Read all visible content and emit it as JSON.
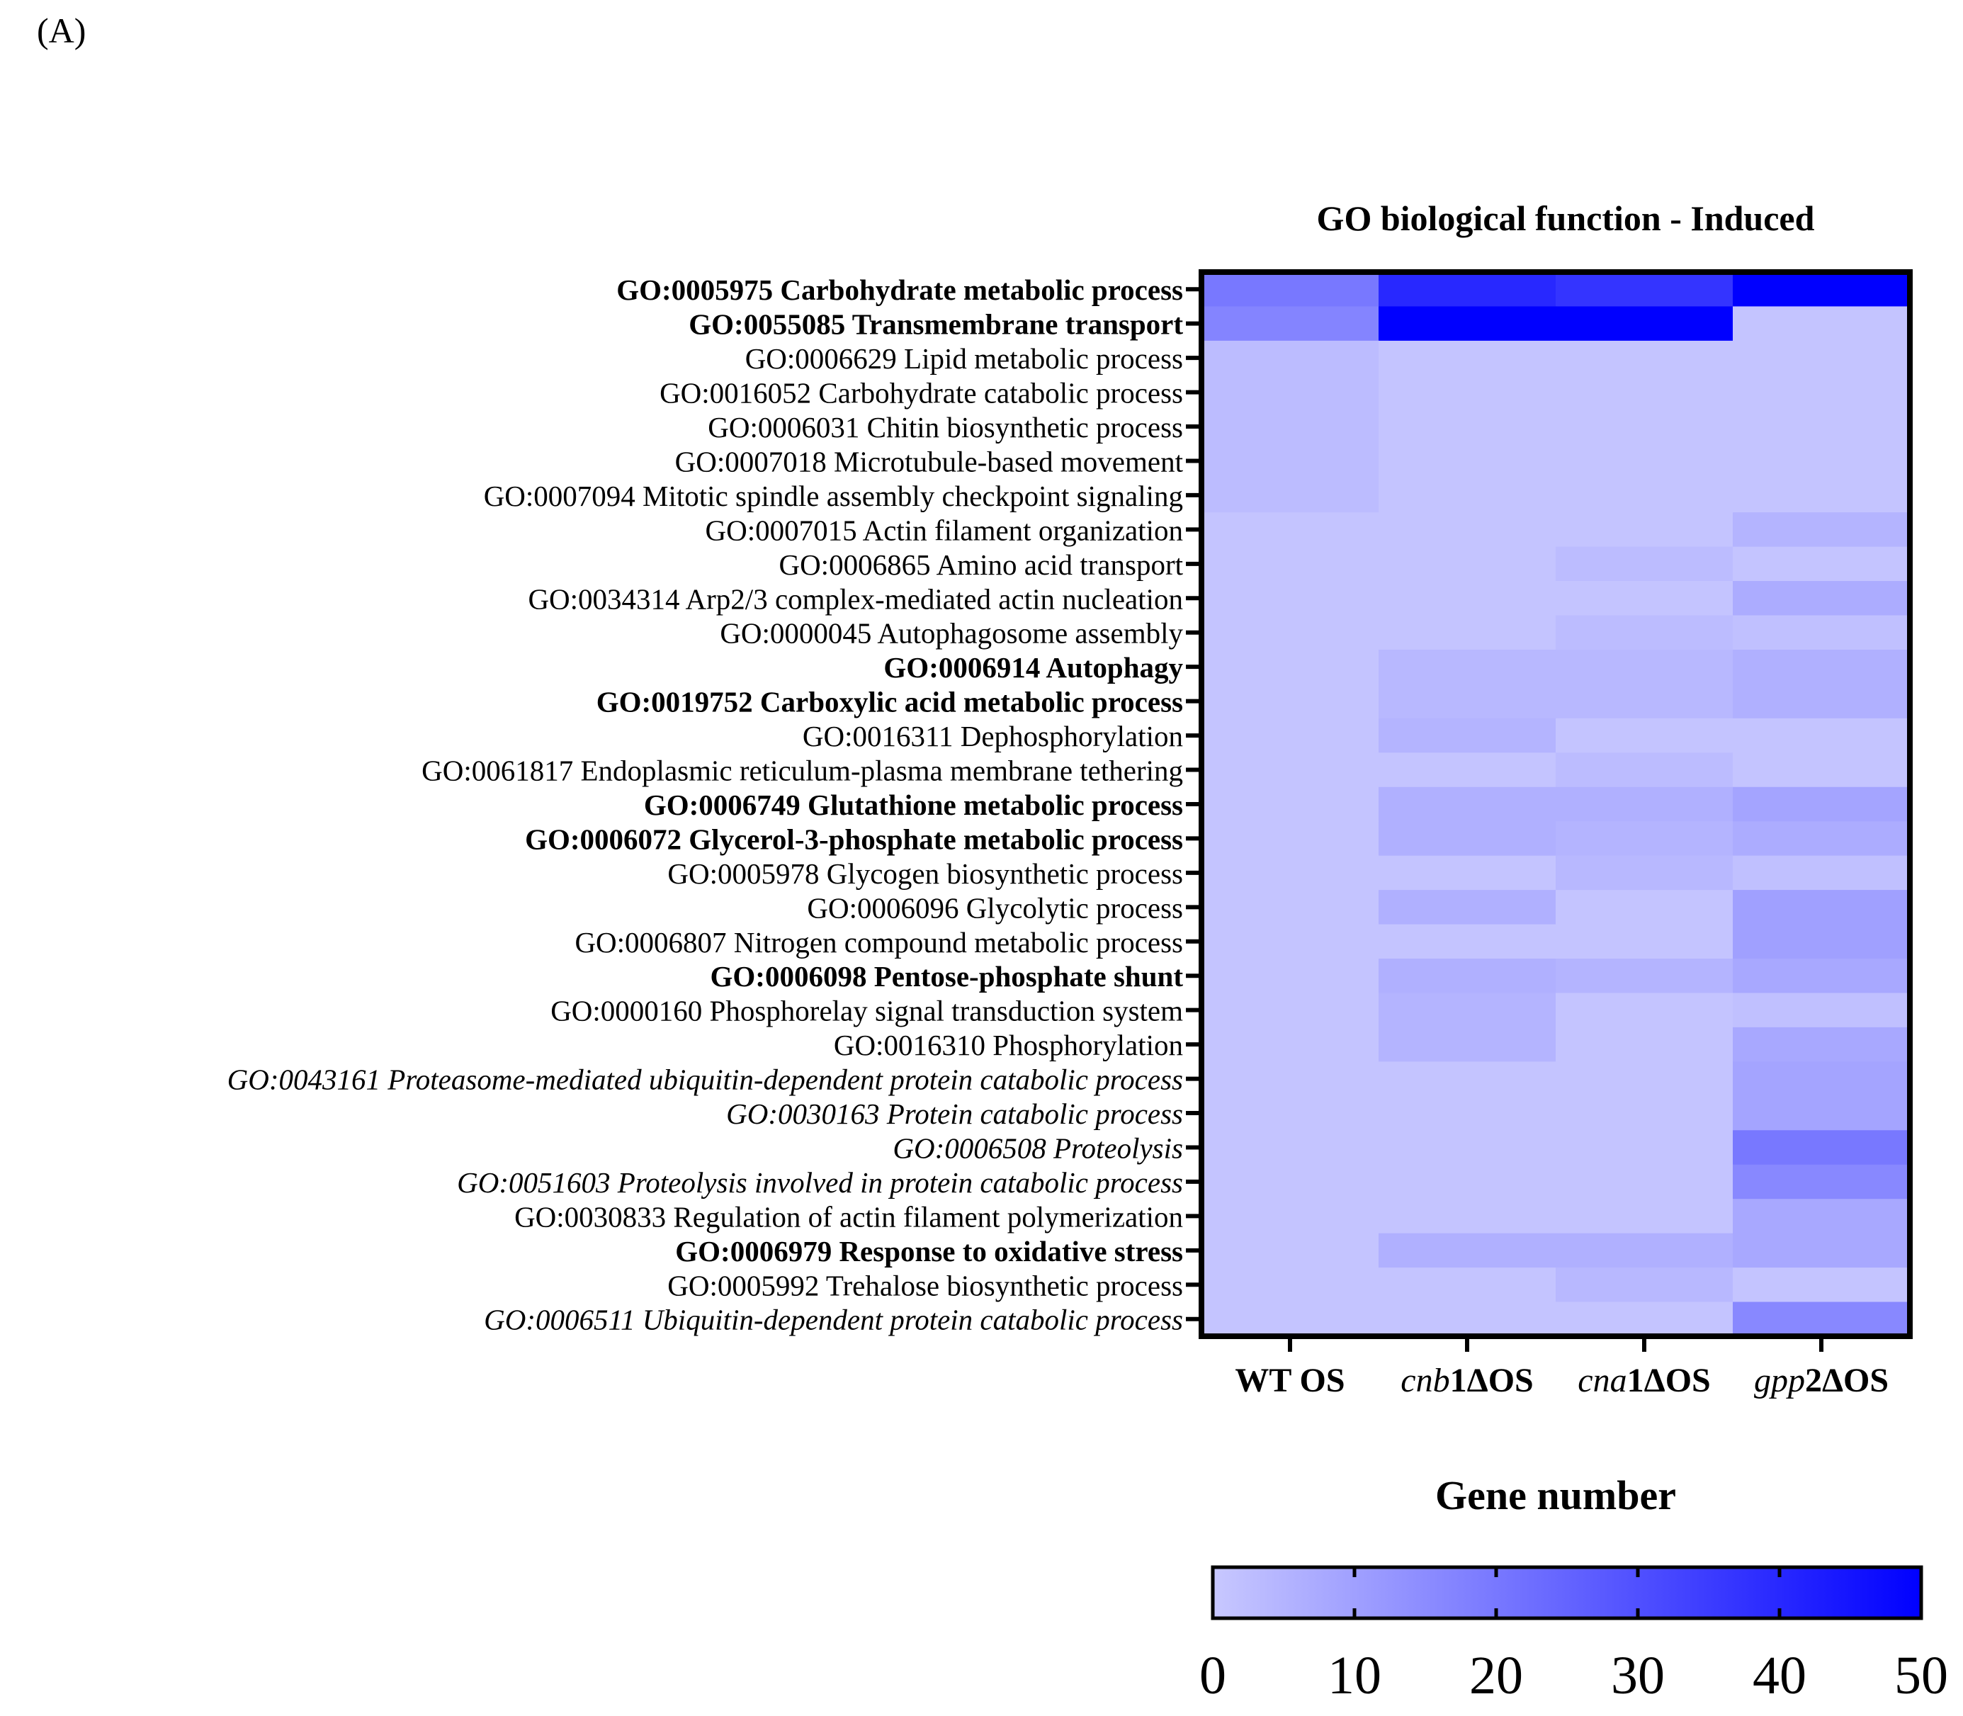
{
  "panel_label": "(A)",
  "colors": {
    "low": "#c8c8ff",
    "high": "#0000ff",
    "frame": "#000000"
  },
  "chart_data": {
    "type": "heatmap",
    "title": "GO biological function - Induced",
    "columns": [
      {
        "parts": [
          {
            "t": "WT OS",
            "i": false
          }
        ]
      },
      {
        "parts": [
          {
            "t": "cnb",
            "i": true
          },
          {
            "t": "1ΔOS",
            "i": false
          }
        ]
      },
      {
        "parts": [
          {
            "t": "cna",
            "i": true
          },
          {
            "t": "1ΔOS",
            "i": false
          }
        ]
      },
      {
        "parts": [
          {
            "t": "gpp",
            "i": true
          },
          {
            "t": "2ΔOS",
            "i": false
          }
        ]
      }
    ],
    "colorbar": {
      "title": "Gene number",
      "min": 0,
      "max": 50,
      "ticks": [
        "0",
        "10",
        "20",
        "30",
        "40",
        "50"
      ]
    },
    "rows": [
      {
        "label": "GO:0005975 Carbohydrate metabolic process",
        "style": "bold",
        "values": [
          20,
          40,
          37,
          50
        ]
      },
      {
        "label": "GO:0055085 Transmembrane transport",
        "style": "bold",
        "values": [
          17,
          50,
          50,
          1
        ]
      },
      {
        "label": "GO:0006629 Lipid metabolic process",
        "style": "normal",
        "values": [
          3,
          1,
          1,
          1
        ]
      },
      {
        "label": "GO:0016052 Carbohydrate catabolic process",
        "style": "normal",
        "values": [
          3,
          1,
          1,
          1
        ]
      },
      {
        "label": "GO:0006031 Chitin biosynthetic process",
        "style": "normal",
        "values": [
          3,
          1,
          1,
          1
        ]
      },
      {
        "label": "GO:0007018 Microtubule-based movement",
        "style": "normal",
        "values": [
          3,
          1,
          1,
          1
        ]
      },
      {
        "label": "GO:0007094 Mitotic spindle assembly checkpoint signaling",
        "style": "normal",
        "values": [
          3,
          1,
          1,
          1
        ]
      },
      {
        "label": "GO:0007015 Actin filament organization",
        "style": "normal",
        "values": [
          1,
          1,
          1,
          5
        ]
      },
      {
        "label": "GO:0006865 Amino acid transport",
        "style": "normal",
        "values": [
          1,
          1,
          3,
          1
        ]
      },
      {
        "label": "GO:0034314 Arp2/3 complex-mediated actin nucleation",
        "style": "normal",
        "values": [
          1,
          1,
          1,
          7
        ]
      },
      {
        "label": "GO:0000045 Autophagosome assembly",
        "style": "normal",
        "values": [
          1,
          1,
          3,
          2
        ]
      },
      {
        "label": "GO:0006914 Autophagy",
        "style": "bold",
        "values": [
          1,
          4,
          4,
          6
        ]
      },
      {
        "label": "GO:0019752 Carboxylic acid metabolic process",
        "style": "bold",
        "values": [
          1,
          4,
          4,
          6
        ]
      },
      {
        "label": "GO:0016311 Dephosphorylation",
        "style": "normal",
        "values": [
          1,
          5,
          1,
          1
        ]
      },
      {
        "label": "GO:0061817 Endoplasmic reticulum-plasma membrane tethering",
        "style": "normal",
        "values": [
          1,
          1,
          3,
          1
        ]
      },
      {
        "label": "GO:0006749 Glutathione metabolic process",
        "style": "bold",
        "values": [
          1,
          6,
          6,
          9
        ]
      },
      {
        "label": "GO:0006072 Glycerol-3-phosphate metabolic process",
        "style": "bold",
        "values": [
          1,
          6,
          5,
          7
        ]
      },
      {
        "label": "GO:0005978 Glycogen biosynthetic process",
        "style": "normal",
        "values": [
          1,
          1,
          4,
          2
        ]
      },
      {
        "label": "GO:0006096 Glycolytic process",
        "style": "normal",
        "values": [
          1,
          6,
          1,
          10
        ]
      },
      {
        "label": "GO:0006807 Nitrogen compound metabolic process",
        "style": "normal",
        "values": [
          1,
          1,
          1,
          10
        ]
      },
      {
        "label": "GO:0006098 Pentose-phosphate shunt",
        "style": "bold",
        "values": [
          1,
          6,
          5,
          8
        ]
      },
      {
        "label": "GO:0000160 Phosphorelay signal transduction system",
        "style": "normal",
        "values": [
          1,
          5,
          1,
          2
        ]
      },
      {
        "label": "GO:0016310 Phosphorylation",
        "style": "normal",
        "values": [
          1,
          5,
          1,
          8
        ]
      },
      {
        "label": "GO:0043161 Proteasome-mediated ubiquitin-dependent protein catabolic process",
        "style": "italic",
        "values": [
          1,
          1,
          1,
          9
        ]
      },
      {
        "label": "GO:0030163 Protein catabolic process",
        "style": "italic",
        "values": [
          1,
          1,
          1,
          9
        ]
      },
      {
        "label": "GO:0006508 Proteolysis",
        "style": "italic",
        "values": [
          1,
          1,
          1,
          20
        ]
      },
      {
        "label": "GO:0051603 Proteolysis involved in protein catabolic process",
        "style": "italic",
        "values": [
          1,
          1,
          1,
          16
        ]
      },
      {
        "label": "GO:0030833 Regulation of actin filament polymerization",
        "style": "normal",
        "values": [
          1,
          1,
          1,
          8
        ]
      },
      {
        "label": "GO:0006979 Response to oxidative stress",
        "style": "bold",
        "values": [
          1,
          6,
          6,
          8
        ]
      },
      {
        "label": "GO:0005992 Trehalose biosynthetic process",
        "style": "normal",
        "values": [
          1,
          1,
          4,
          1
        ]
      },
      {
        "label": "GO:0006511 Ubiquitin-dependent protein catabolic process",
        "style": "italic",
        "values": [
          1,
          1,
          1,
          16
        ]
      }
    ]
  }
}
